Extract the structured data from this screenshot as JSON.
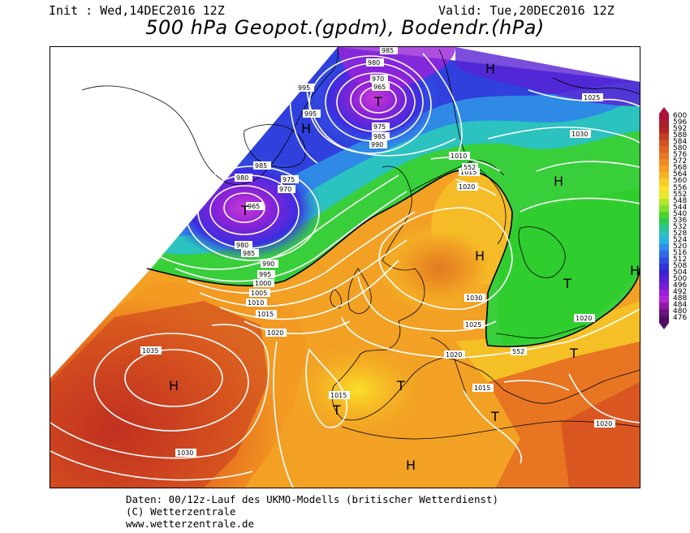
{
  "header": {
    "init": "Init : Wed,14DEC2016 12Z",
    "valid": "Valid: Tue,20DEC2016 12Z",
    "title": "500 hPa Geopot.(gpdm), Bodendr.(hPa)"
  },
  "legend": {
    "values": [
      "600",
      "596",
      "592",
      "588",
      "584",
      "580",
      "576",
      "572",
      "568",
      "564",
      "560",
      "556",
      "552",
      "548",
      "544",
      "540",
      "536",
      "532",
      "528",
      "524",
      "520",
      "516",
      "512",
      "508",
      "504",
      "500",
      "496",
      "492",
      "488",
      "484",
      "480",
      "476"
    ],
    "colors": [
      "#b0103a",
      "#a81e2c",
      "#b32623",
      "#c53a22",
      "#d14f20",
      "#dd6420",
      "#e77720",
      "#f08a22",
      "#f59d24",
      "#f8b324",
      "#facb26",
      "#fce129",
      "#eaea2c",
      "#b6e52a",
      "#82df2a",
      "#4bd52c",
      "#2ccb55",
      "#2bc58e",
      "#2bc0c4",
      "#2ab0e8",
      "#2d8de8",
      "#2f6ce6",
      "#2f4ce4",
      "#3033dc",
      "#3c22d4",
      "#5a1ed0",
      "#7a1ed4",
      "#9a20d8",
      "#b425d6",
      "#9018a6",
      "#6e1284",
      "#4e0e62"
    ]
  },
  "map": {
    "high_label": "H",
    "low_label": "T",
    "isobar_labels": {
      "p985": "985",
      "p980": "980",
      "p970": "970",
      "p965": "965",
      "p975": "975",
      "p990": "990",
      "p995": "995",
      "p1000": "1000",
      "p1005": "1005",
      "p1010": "1010",
      "p1015": "1015",
      "p1020": "1020",
      "p1025": "1025",
      "p1030": "1030",
      "p1035": "1035"
    },
    "contour_552": "552"
  },
  "footer": {
    "line1": "Daten: 00/12z-Lauf des UKMO-Modells (britischer Wetterdienst)",
    "line2": "(C) Wetterzentrale",
    "line3": "www.wetterzentrale.de"
  }
}
